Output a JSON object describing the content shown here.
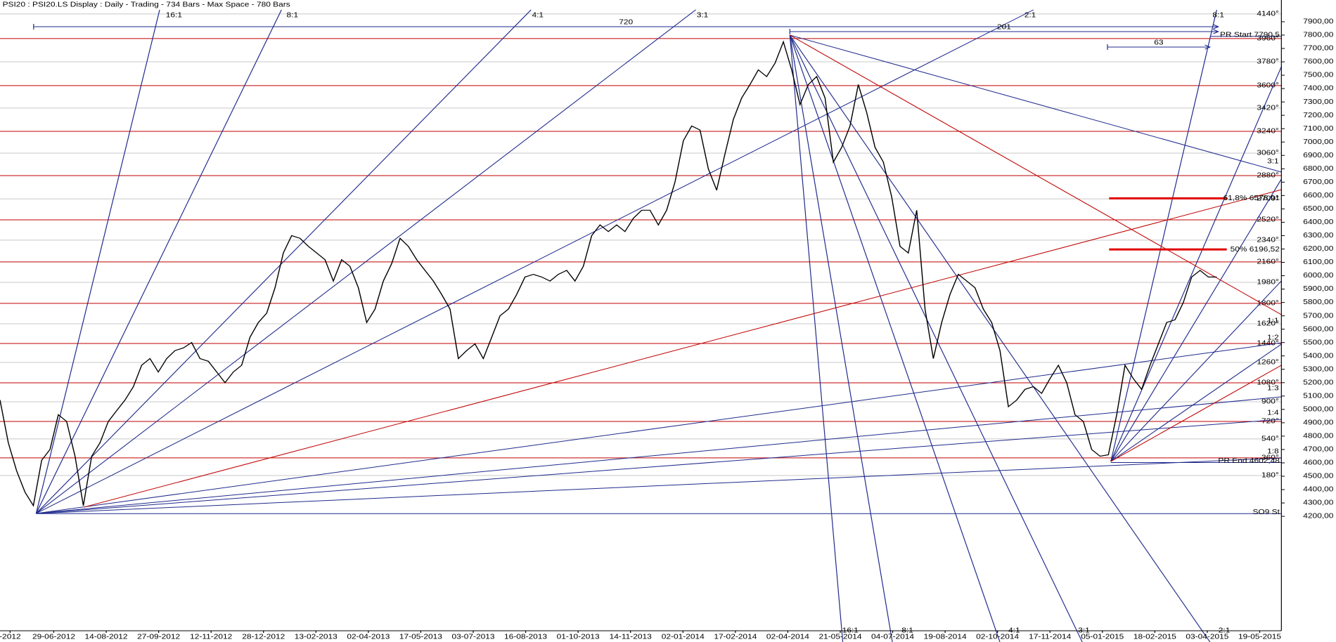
{
  "chart_data": {
    "type": "line",
    "title": "PSI20 : PSI20.LS Display :  Daily  - Trading - 734 Bars -  Max Space - 780 Bars",
    "x_labels": [
      "-2012",
      "29-06-2012",
      "14-08-2012",
      "27-09-2012",
      "12-11-2012",
      "28-12-2012",
      "13-02-2013",
      "02-04-2013",
      "17-05-2013",
      "03-07-2013",
      "16-08-2013",
      "01-10-2013",
      "14-11-2013",
      "02-01-2014",
      "17-02-2014",
      "02-04-2014",
      "21-05-2014",
      "04-07-2014",
      "19-08-2014",
      "02-10-2014",
      "17-11-2014",
      "05-01-2015",
      "18-02-2015",
      "03-04-2015",
      "19-05-2015"
    ],
    "series": [
      {
        "color": "#000000",
        "values": [
          5070,
          4750,
          4540,
          4380,
          4280,
          4620,
          4700,
          4960,
          4910,
          4650,
          4280,
          4650,
          4750,
          4910,
          4990,
          5070,
          5170,
          5330,
          5380,
          5280,
          5380,
          5440,
          5460,
          5500,
          5380,
          5360,
          5280,
          5200,
          5280,
          5330,
          5540,
          5650,
          5720,
          5910,
          6170,
          6300,
          6280,
          6220,
          6170,
          6120,
          5960,
          6120,
          6070,
          5910,
          5650,
          5750,
          5960,
          6090,
          6280,
          6220,
          6120,
          6040,
          5960,
          5860,
          5750,
          5380,
          5440,
          5490,
          5380,
          5540,
          5700,
          5750,
          5860,
          5990,
          6010,
          5990,
          5960,
          6010,
          6040,
          5960,
          6070,
          6300,
          6380,
          6330,
          6380,
          6330,
          6430,
          6490,
          6490,
          6380,
          6490,
          6700,
          7010,
          7120,
          7090,
          6800,
          6640,
          6910,
          7170,
          7330,
          7430,
          7540,
          7490,
          7590,
          7750,
          7540,
          7280,
          7430,
          7490,
          7330,
          6850,
          6960,
          7120,
          7430,
          7220,
          6960,
          6850,
          6590,
          6220,
          6170,
          6490,
          5750,
          5380,
          5650,
          5860,
          6010,
          5960,
          5910,
          5750,
          5650,
          5440,
          5020,
          5070,
          5150,
          5170,
          5120,
          5230,
          5330,
          5200,
          4960,
          4910,
          4700,
          4650,
          4660,
          4960,
          5330,
          5230,
          5150,
          5330,
          5490,
          5650,
          5670,
          5800,
          5990,
          6040,
          5990,
          5990
        ]
      }
    ],
    "ylim": [
      3344,
      7989
    ],
    "yticks": [
      {
        "value": 4200,
        "label": "4200,00"
      },
      {
        "value": 4300,
        "label": "4300,00"
      },
      {
        "value": 4400,
        "label": "4400,00"
      },
      {
        "value": 4500,
        "label": "4500,00"
      },
      {
        "value": 4600,
        "label": "4600,00"
      },
      {
        "value": 4700,
        "label": "4700,00"
      },
      {
        "value": 4800,
        "label": "4800,00"
      },
      {
        "value": 4900,
        "label": "4900,00"
      },
      {
        "value": 5000,
        "label": "5000,00"
      },
      {
        "value": 5100,
        "label": "5100,00"
      },
      {
        "value": 5200,
        "label": "5200,00"
      },
      {
        "value": 5300,
        "label": "5300,00"
      },
      {
        "value": 5400,
        "label": "5400,00"
      },
      {
        "value": 5500,
        "label": "5500,00"
      },
      {
        "value": 5600,
        "label": "5600,00"
      },
      {
        "value": 5700,
        "label": "5700,00"
      },
      {
        "value": 5800,
        "label": "5800,00"
      },
      {
        "value": 5900,
        "label": "5900,00"
      },
      {
        "value": 6000,
        "label": "6000,00"
      },
      {
        "value": 6100,
        "label": "6100,00"
      },
      {
        "value": 6200,
        "label": "6200,00"
      },
      {
        "value": 6300,
        "label": "6300,00"
      },
      {
        "value": 6400,
        "label": "6400,00"
      },
      {
        "value": 6500,
        "label": "6500,00"
      },
      {
        "value": 6600,
        "label": "6600,00"
      },
      {
        "value": 6700,
        "label": "6700,00"
      },
      {
        "value": 6800,
        "label": "6800,00"
      },
      {
        "value": 6900,
        "label": "6900,00"
      },
      {
        "value": 7000,
        "label": "7000,00"
      },
      {
        "value": 7100,
        "label": "7100,00"
      },
      {
        "value": 7200,
        "label": "7200,00"
      },
      {
        "value": 7300,
        "label": "7300,00"
      },
      {
        "value": 7400,
        "label": "7400,00"
      },
      {
        "value": 7500,
        "label": "7500,00"
      },
      {
        "value": 7600,
        "label": "7600,00"
      },
      {
        "value": 7700,
        "label": "7700,00"
      },
      {
        "value": 7800,
        "label": "7800,00"
      },
      {
        "value": 7900,
        "label": "7900,00"
      }
    ],
    "grid": false,
    "degree_levels": [
      {
        "label": "180°",
        "value": 4505,
        "color": "#c8c8c8"
      },
      {
        "label": "360°",
        "value": 4637,
        "color": "#c00000"
      },
      {
        "label": "540°",
        "value": 4779,
        "color": "#c8c8c8"
      },
      {
        "label": "720°",
        "value": 4910,
        "color": "#c00000"
      },
      {
        "label": "900°",
        "value": 5057,
        "color": "#c8c8c8"
      },
      {
        "label": "1080°",
        "value": 5199,
        "color": "#c00000"
      },
      {
        "label": "1260°",
        "value": 5351,
        "color": "#c8c8c8"
      },
      {
        "label": "1440°",
        "value": 5493,
        "color": "#c00000"
      },
      {
        "label": "1620°",
        "value": 5640,
        "color": "#c8c8c8"
      },
      {
        "label": "1800°",
        "value": 5793,
        "color": "#c00000"
      },
      {
        "label": "1980°",
        "value": 5950,
        "color": "#c8c8c8"
      },
      {
        "label": "2160°",
        "value": 6103,
        "color": "#c00000"
      },
      {
        "label": "2340°",
        "value": 6266,
        "color": "#c8c8c8"
      },
      {
        "label": "2520°",
        "value": 6418,
        "color": "#c00000"
      },
      {
        "label": "2700°",
        "value": 6575,
        "color": "#c8c8c8"
      },
      {
        "label": "2880°",
        "value": 6749,
        "color": "#c00000"
      },
      {
        "label": "3060°",
        "value": 6917,
        "color": "#c8c8c8"
      },
      {
        "label": "3240°",
        "value": 7080,
        "color": "#c00000"
      },
      {
        "label": "3420°",
        "value": 7254,
        "color": "#c8c8c8"
      },
      {
        "label": "3600°",
        "value": 7422,
        "color": "#c00000"
      },
      {
        "label": "3780°",
        "value": 7600,
        "color": "#c8c8c8"
      },
      {
        "label": "3960°",
        "value": 7774,
        "color": "#c00000"
      },
      {
        "label": "4140°",
        "value": 7958,
        "color": "#c8c8c8"
      }
    ],
    "fib_levels": [
      {
        "label": "50% 6196,52",
        "value": 6196.52,
        "color": "#e00000"
      },
      {
        "label": "61,8% 6578,91",
        "value": 6578.91,
        "color": "#e00000"
      }
    ],
    "price_markers": [
      {
        "label": "PR Start 7790,5",
        "value": 7790.5,
        "color": "#1f2a8c"
      },
      {
        "label": "PR End 4602,48",
        "value": 4602.48,
        "color": "#1f2a8c"
      },
      {
        "label": "SO9 St",
        "value": 4220,
        "color": "#1f2a8c"
      }
    ],
    "bar_spans": [
      720,
      201,
      63
    ],
    "fan_labels": [
      "16:1",
      "8:1",
      "4:1",
      "3:1",
      "2:1",
      "8:1",
      "16:1",
      "8:1",
      "4:1",
      "3:1",
      "2:1",
      "3:1",
      "1:1",
      "1:2",
      "1:3",
      "1:4",
      "1:8"
    ],
    "fan_color": "#1f2a8c",
    "trend_color": "#c00000"
  }
}
